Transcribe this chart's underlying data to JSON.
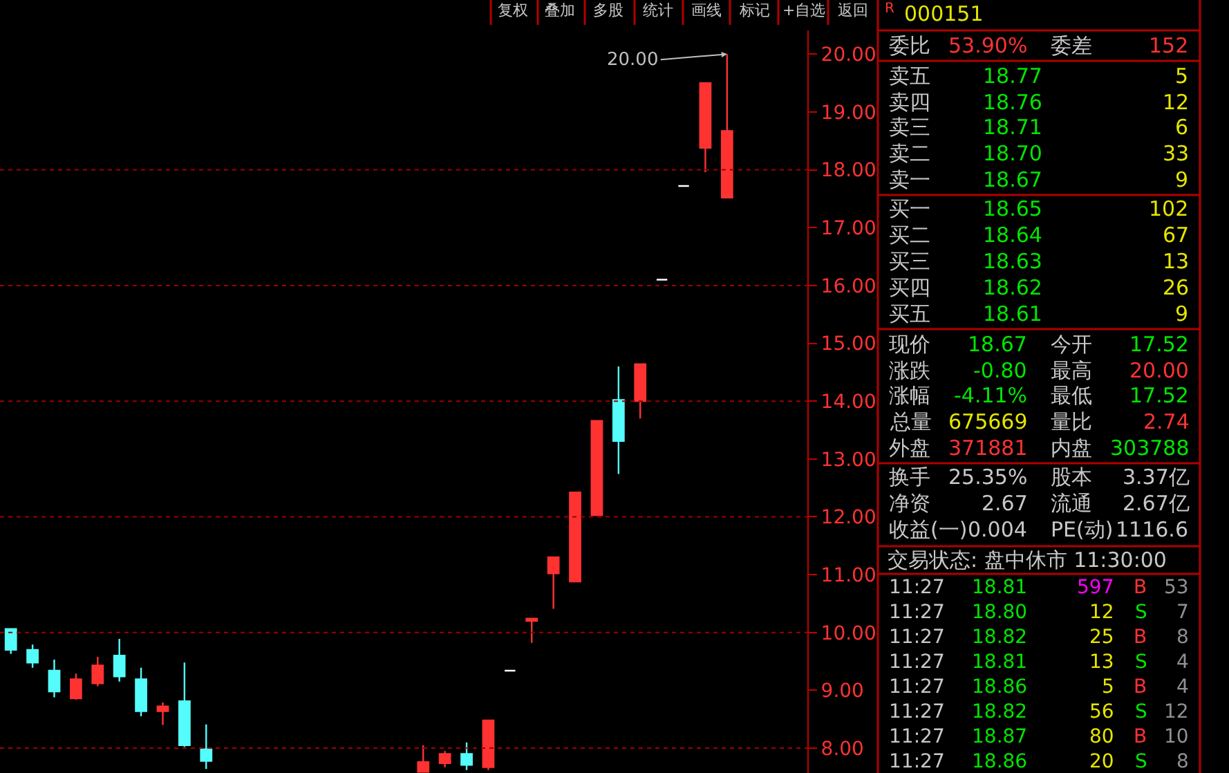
{
  "chart_data": {
    "type": "candlestick",
    "categories": [
      null,
      null,
      null,
      null,
      null,
      null,
      null,
      null,
      null,
      null,
      null,
      null,
      null,
      null,
      null,
      null,
      null,
      null,
      null,
      null,
      null,
      null,
      null,
      null,
      null,
      null,
      null,
      null,
      null,
      null,
      null,
      null,
      null,
      null
    ],
    "ohlc": [
      [
        10.06,
        10.06,
        9.63,
        9.7
      ],
      [
        9.7,
        9.79,
        9.39,
        9.48
      ],
      [
        9.34,
        9.53,
        8.88,
        8.98
      ],
      [
        8.86,
        9.29,
        8.84,
        9.19
      ],
      [
        9.12,
        9.58,
        9.07,
        9.43
      ],
      [
        9.6,
        9.89,
        9.15,
        9.24
      ],
      [
        9.19,
        9.39,
        8.55,
        8.64
      ],
      [
        8.64,
        8.79,
        8.4,
        8.72
      ],
      [
        8.81,
        9.48,
        8.02,
        8.05
      ],
      [
        7.98,
        8.41,
        7.64,
        7.78
      ],
      null,
      null,
      null,
      null,
      null,
      null,
      null,
      null,
      null,
      [
        7.59,
        8.05,
        7.58,
        7.76
      ],
      [
        7.74,
        7.95,
        7.67,
        7.9
      ],
      [
        7.9,
        8.1,
        7.62,
        7.71
      ],
      [
        7.67,
        8.48,
        7.62,
        8.48
      ],
      [
        9.34,
        9.34,
        9.34,
        9.34
      ],
      [
        10.2,
        10.24,
        9.82,
        10.24
      ],
      [
        11.02,
        11.3,
        10.41,
        11.3
      ],
      [
        10.88,
        12.42,
        10.88,
        12.42
      ],
      [
        12.03,
        13.66,
        12.03,
        13.66
      ],
      [
        14.02,
        14.6,
        12.74,
        13.31
      ],
      [
        14.0,
        14.64,
        13.7,
        14.64
      ],
      [
        16.1,
        16.1,
        16.1,
        16.1
      ],
      [
        17.72,
        17.72,
        17.72,
        17.72
      ],
      [
        18.38,
        19.5,
        17.96,
        19.5
      ],
      [
        17.52,
        20.0,
        17.52,
        18.67
      ]
    ],
    "colors": [
      "#54fcfc",
      "#54fcfc",
      "#54fcfc",
      "#ff3232",
      "#ff3232",
      "#54fcfc",
      "#54fcfc",
      "#ff3232",
      "#54fcfc",
      "#54fcfc",
      null,
      null,
      null,
      null,
      null,
      null,
      null,
      null,
      null,
      "#ff3232",
      "#ff3232",
      "#54fcfc",
      "#ff3232",
      "#ffffff",
      "#ff3232",
      "#ff3232",
      "#ff3232",
      "#ff3232",
      "#54fcfc",
      "#ff3232",
      "#ffffff",
      "#ffffff",
      "#ff3232",
      "#ff3232"
    ],
    "ylim": [
      7.57,
      20.41
    ],
    "yticks": [
      {
        "value": 8,
        "label": "8.00"
      },
      {
        "value": 9,
        "label": "9.00"
      },
      {
        "value": 10,
        "label": "10.00"
      },
      {
        "value": 11,
        "label": "11.00"
      },
      {
        "value": 12,
        "label": "12.00"
      },
      {
        "value": 13,
        "label": "13.00"
      },
      {
        "value": 14,
        "label": "14.00"
      },
      {
        "value": 15,
        "label": "15.00"
      },
      {
        "value": 16,
        "label": "16.00"
      },
      {
        "value": 17,
        "label": "17.00"
      },
      {
        "value": 18,
        "label": "18.00"
      },
      {
        "value": 19,
        "label": "19.00"
      },
      {
        "value": 20,
        "label": "20.00"
      }
    ],
    "tick_labels": "y",
    "grid": false,
    "ref_lines": [
      {
        "axis": "y",
        "value": 8,
        "color": "#a00000",
        "line_style": "dotted"
      },
      {
        "axis": "y",
        "value": 10,
        "color": "#a00000",
        "line_style": "dotted"
      },
      {
        "axis": "y",
        "value": 12,
        "color": "#a00000",
        "line_style": "dotted"
      },
      {
        "axis": "y",
        "value": 14,
        "color": "#a00000",
        "line_style": "dotted"
      },
      {
        "axis": "y",
        "value": 16,
        "color": "#a00000",
        "line_style": "dotted"
      },
      {
        "axis": "y",
        "value": 18,
        "color": "#a00000",
        "line_style": "dotted"
      }
    ],
    "annotations": [
      "20.00",
      "复权",
      "叠加",
      "多股",
      "统计",
      "画线",
      "标记",
      "+自选",
      "返回",
      "R",
      "000151",
      "委比",
      "53.90%",
      "委差",
      "152",
      "卖五",
      "18.77",
      "5",
      "卖四",
      "18.76",
      "12",
      "卖三",
      "18.71",
      "6",
      "卖二",
      "18.70",
      "33",
      "卖一",
      "18.67",
      "9",
      "买一",
      "18.65",
      "102",
      "买二",
      "18.64",
      "67",
      "买三",
      "18.63",
      "13",
      "买四",
      "18.62",
      "26",
      "买五",
      "18.61",
      "9",
      "现价",
      "18.67",
      "今开",
      "17.52",
      "涨跌",
      "-0.80",
      "最高",
      "20.00",
      "涨幅",
      "-4.11%",
      "最低",
      "17.52",
      "总量",
      "675669",
      "量比",
      "2.74",
      "外盘",
      "371881",
      "内盘",
      "303788",
      "换手",
      "25.35%",
      "股本",
      "3.37亿",
      "净资",
      "2.67",
      "流通",
      "2.67亿",
      "收益(一)",
      "0.004",
      "PE(动)",
      "1116.6",
      "交易状态: 盘中休市 11:30:00",
      "11:27",
      "18.81",
      "597",
      "B",
      "53",
      "11:27",
      "18.80",
      "12",
      "S",
      "7",
      "11:27",
      "18.82",
      "25",
      "B",
      "8",
      "11:27",
      "18.81",
      "13",
      "S",
      "4",
      "11:27",
      "18.86",
      "5",
      "B",
      "4",
      "11:27",
      "18.82",
      "56",
      "S",
      "12",
      "11:27",
      "18.87",
      "80",
      "B",
      "10",
      "11:27",
      "18.86",
      "20",
      "S",
      "8"
    ]
  }
}
